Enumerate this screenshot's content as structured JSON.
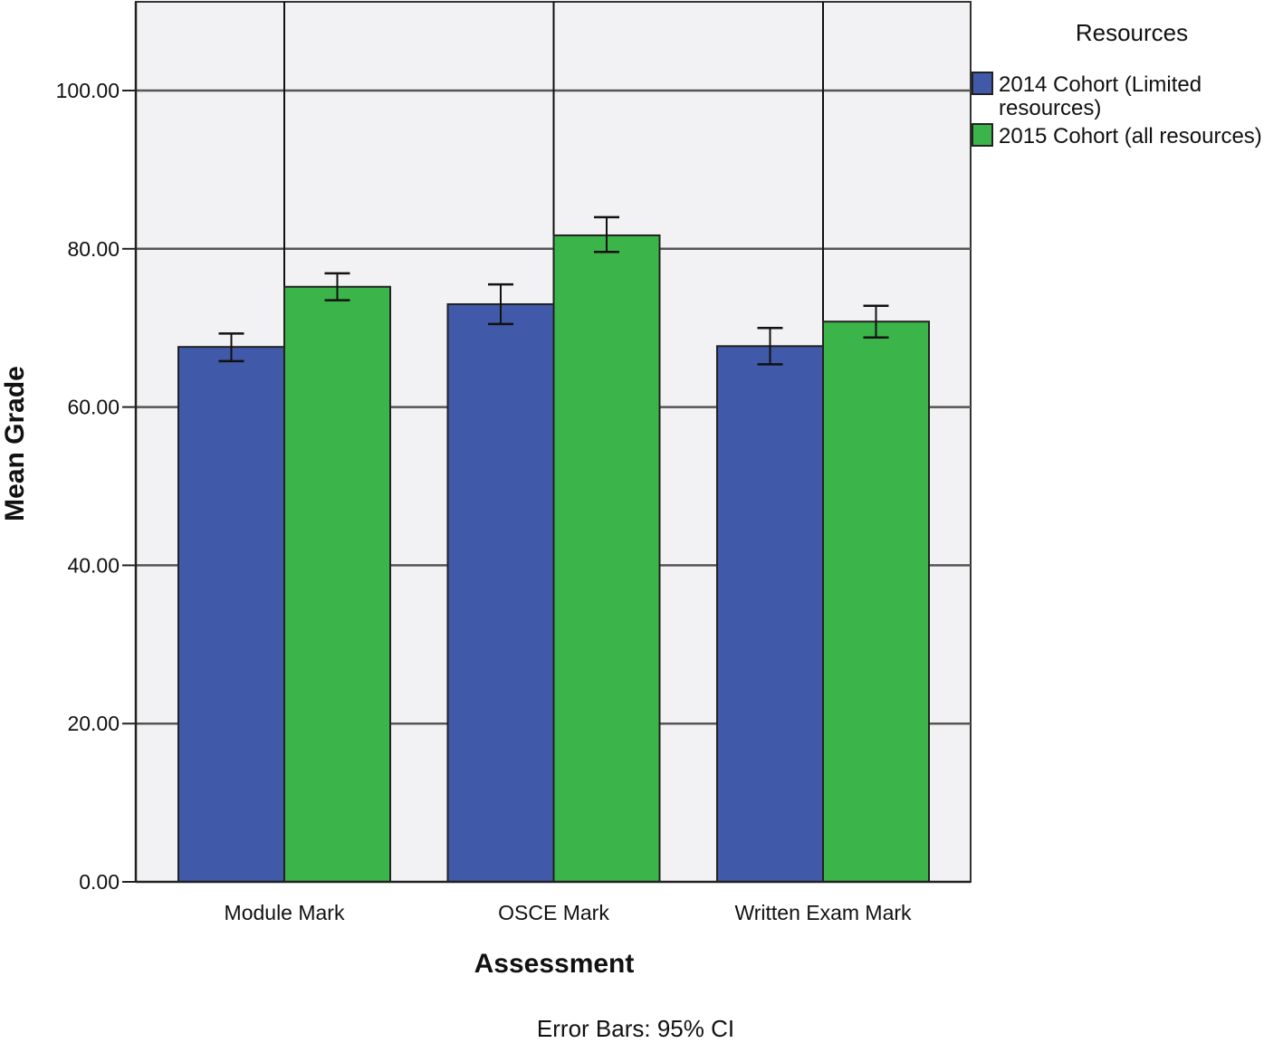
{
  "chart_data": {
    "type": "bar",
    "title": "",
    "xlabel": "Assessment",
    "ylabel": "Mean Grade",
    "ylim": [
      0,
      111
    ],
    "yticks": [
      "0.00",
      "20.00",
      "40.00",
      "60.00",
      "80.00",
      "100.00"
    ],
    "ytick_values": [
      0,
      20,
      40,
      60,
      80,
      100
    ],
    "grid": true,
    "categories": [
      "Module Mark",
      "OSCE Mark",
      "Written Exam Mark"
    ],
    "legend": {
      "title": "Resources",
      "placement": "top-right"
    },
    "series": [
      {
        "name": "2014 Cohort (Limited resources)",
        "name_lines": [
          "2014 Cohort (Limited",
          "resources)"
        ],
        "color": "#4059a8",
        "values": [
          67.6,
          73.0,
          67.7
        ],
        "ci_low": [
          65.8,
          70.5,
          65.4
        ],
        "ci_high": [
          69.3,
          75.5,
          70.0
        ]
      },
      {
        "name": "2015 Cohort (all resources)",
        "name_lines": [
          "2015 Cohort (all resources)"
        ],
        "color": "#3bb54a",
        "values": [
          75.2,
          81.7,
          70.8
        ],
        "ci_low": [
          73.5,
          79.6,
          68.8
        ],
        "ci_high": [
          76.9,
          84.0,
          72.8
        ]
      }
    ],
    "footnote": "Error Bars: 95% CI"
  }
}
